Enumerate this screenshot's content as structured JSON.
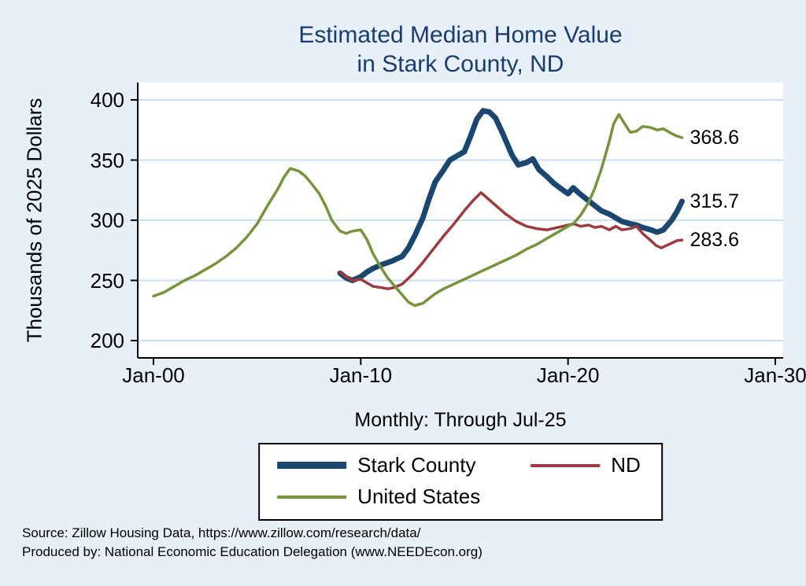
{
  "colors": {
    "background": "#e7eff8",
    "plot_background": "#ffffff",
    "grid": "#c9dff2",
    "axis": "#000000",
    "text": "#000000",
    "title": "#1a3c6e",
    "stark_county": "#1a476f",
    "nd": "#9e3a3e",
    "united_states": "#77933c",
    "legend_border": "#000000",
    "legend_background": "#ffffff"
  },
  "title": {
    "line1": "Estimated Median Home Value",
    "line2": "in Stark County, ND"
  },
  "y_axis_label": "Thousands of 2025 Dollars",
  "x_caption": "Monthly: Through Jul-25",
  "footer": {
    "line1": "Source: Zillow Housing Data, https://www.zillow.com/research/data/",
    "line2": "Produced by: National Economic Education Delegation (www.NEEDEcon.org)"
  },
  "legend": [
    {
      "label": "Stark County",
      "color_key": "stark_county",
      "thick": true
    },
    {
      "label": "ND",
      "color_key": "nd",
      "thick": false
    },
    {
      "label": "United States",
      "color_key": "united_states",
      "thick": false
    }
  ],
  "chart_data": {
    "type": "line",
    "title": "Estimated Median Home Value in Stark County, ND",
    "ylabel": "Thousands of 2025 Dollars",
    "xlabel": "Monthly: Through Jul-25",
    "ylim": [
      200,
      400
    ],
    "xlim": [
      2000,
      2030
    ],
    "grid": "horizontal",
    "legend_position": "bottom",
    "y_ticks": [
      200,
      250,
      300,
      350,
      400
    ],
    "x_ticks": [
      {
        "label": "Jan-00",
        "year": 2000
      },
      {
        "label": "Jan-10",
        "year": 2010
      },
      {
        "label": "Jan-20",
        "year": 2020
      },
      {
        "label": "Jan-30",
        "year": 2030
      }
    ],
    "series": [
      {
        "name": "Stark County",
        "color_key": "stark_county",
        "line_width": 7,
        "end_label": "315.7",
        "x": [
          2009.0,
          2009.3,
          2009.6,
          2010.0,
          2010.3,
          2010.6,
          2011.0,
          2011.5,
          2012.0,
          2012.3,
          2012.6,
          2013.0,
          2013.3,
          2013.6,
          2014.0,
          2014.3,
          2014.6,
          2015.0,
          2015.3,
          2015.6,
          2015.9,
          2016.2,
          2016.5,
          2016.8,
          2017.0,
          2017.3,
          2017.6,
          2018.0,
          2018.3,
          2018.6,
          2019.0,
          2019.3,
          2019.6,
          2020.0,
          2020.25,
          2020.5,
          2021.0,
          2021.3,
          2021.6,
          2022.0,
          2022.3,
          2022.6,
          2023.0,
          2023.3,
          2023.6,
          2024.0,
          2024.3,
          2024.6,
          2025.0,
          2025.25,
          2025.5
        ],
        "y": [
          256,
          252,
          250,
          253,
          257,
          260,
          263,
          266,
          270,
          277,
          287,
          302,
          318,
          332,
          342,
          350,
          353,
          357,
          370,
          384,
          391,
          390,
          385,
          374,
          366,
          354,
          346,
          348,
          351,
          342,
          336,
          331,
          327,
          322,
          327,
          323,
          316,
          312,
          308,
          305,
          302,
          299,
          297,
          296,
          294,
          292,
          290,
          292,
          300,
          307,
          315.7
        ]
      },
      {
        "name": "ND",
        "color_key": "nd",
        "line_width": 3.5,
        "end_label": "283.6",
        "x": [
          2009.0,
          2009.3,
          2009.6,
          2010.0,
          2010.3,
          2010.6,
          2011.0,
          2011.3,
          2011.6,
          2012.0,
          2012.5,
          2013.0,
          2013.5,
          2014.0,
          2014.5,
          2015.0,
          2015.4,
          2015.8,
          2016.2,
          2016.6,
          2017.0,
          2017.5,
          2018.0,
          2018.5,
          2019.0,
          2019.5,
          2020.0,
          2020.3,
          2020.6,
          2021.0,
          2021.3,
          2021.6,
          2022.0,
          2022.3,
          2022.6,
          2023.0,
          2023.3,
          2023.6,
          2024.0,
          2024.25,
          2024.5,
          2024.75,
          2025.0,
          2025.25,
          2025.5
        ],
        "y": [
          257,
          253,
          250,
          251,
          248,
          245,
          244,
          243,
          244,
          247,
          255,
          265,
          276,
          287,
          297,
          308,
          316,
          323,
          317,
          311,
          305,
          299,
          295,
          293,
          292,
          294,
          296,
          297,
          295,
          296,
          294,
          295,
          292,
          295,
          292,
          293,
          295,
          289,
          283,
          279,
          277,
          279,
          281,
          283,
          283.6
        ]
      },
      {
        "name": "United States",
        "color_key": "united_states",
        "line_width": 3.5,
        "end_label": "368.6",
        "x": [
          2000.0,
          2000.5,
          2001.0,
          2001.5,
          2002.0,
          2002.5,
          2003.0,
          2003.5,
          2004.0,
          2004.5,
          2005.0,
          2005.5,
          2006.0,
          2006.3,
          2006.6,
          2007.0,
          2007.3,
          2007.6,
          2008.0,
          2008.3,
          2008.6,
          2009.0,
          2009.3,
          2009.6,
          2010.0,
          2010.3,
          2010.6,
          2011.0,
          2011.3,
          2011.6,
          2012.0,
          2012.3,
          2012.6,
          2013.0,
          2013.3,
          2013.6,
          2014.0,
          2014.5,
          2015.0,
          2015.5,
          2016.0,
          2016.5,
          2017.0,
          2017.5,
          2018.0,
          2018.5,
          2019.0,
          2019.5,
          2020.0,
          2020.3,
          2020.6,
          2021.0,
          2021.3,
          2021.6,
          2022.0,
          2022.2,
          2022.45,
          2022.7,
          2023.0,
          2023.3,
          2023.6,
          2024.0,
          2024.3,
          2024.6,
          2025.0,
          2025.25,
          2025.5
        ],
        "y": [
          237,
          240,
          245,
          250,
          254,
          259,
          264,
          270,
          277,
          286,
          297,
          312,
          326,
          336,
          343,
          341,
          337,
          331,
          322,
          312,
          300,
          291,
          289,
          291,
          292,
          284,
          272,
          260,
          252,
          246,
          238,
          232,
          229,
          231,
          235,
          239,
          243,
          247,
          251,
          255,
          259,
          263,
          267,
          271,
          276,
          280,
          285,
          290,
          295,
          298,
          304,
          315,
          327,
          342,
          366,
          380,
          388,
          381,
          373,
          374,
          378,
          377,
          375,
          376,
          372,
          370,
          368.6
        ]
      }
    ]
  }
}
